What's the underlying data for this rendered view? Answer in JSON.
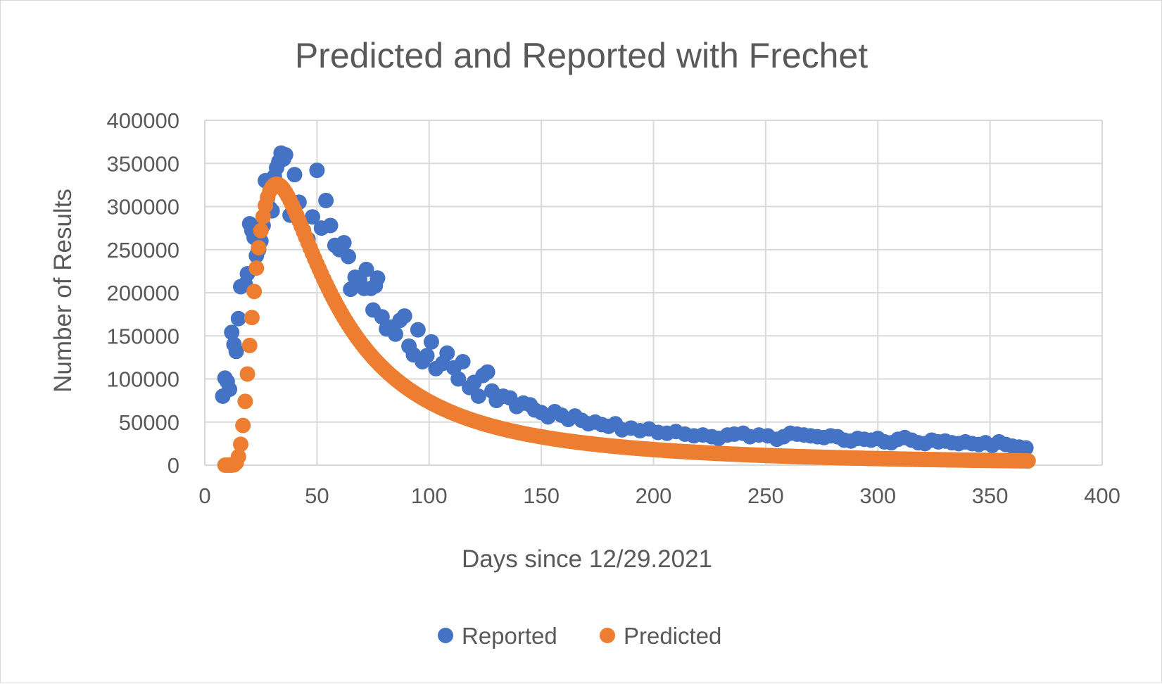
{
  "chart_data": {
    "type": "scatter",
    "title": "Predicted and Reported with Frechet",
    "xlabel": "Days since 12/29.2021",
    "ylabel": "Number of Results",
    "xlim": [
      0,
      400
    ],
    "ylim": [
      0,
      400000
    ],
    "x_ticks": [
      "0",
      "50",
      "100",
      "150",
      "200",
      "250",
      "300",
      "350",
      "400"
    ],
    "y_ticks": [
      "0",
      "50000",
      "100000",
      "150000",
      "200000",
      "250000",
      "300000",
      "350000",
      "400000"
    ],
    "grid": true,
    "legend_position": "bottom",
    "series": [
      {
        "name": "Reported",
        "color": "#4472c4",
        "points": [
          [
            8,
            80000
          ],
          [
            9,
            101000
          ],
          [
            10,
            97000
          ],
          [
            11,
            88000
          ],
          [
            12,
            154000
          ],
          [
            13,
            140000
          ],
          [
            14,
            132000
          ],
          [
            15,
            170000
          ],
          [
            16,
            207000
          ],
          [
            18,
            210000
          ],
          [
            19,
            222000
          ],
          [
            20,
            280000
          ],
          [
            21,
            272000
          ],
          [
            22,
            264000
          ],
          [
            23,
            243000
          ],
          [
            24,
            250000
          ],
          [
            25,
            260000
          ],
          [
            26,
            278000
          ],
          [
            27,
            330000
          ],
          [
            28,
            310000
          ],
          [
            29,
            298000
          ],
          [
            30,
            295000
          ],
          [
            31,
            335000
          ],
          [
            32,
            345000
          ],
          [
            33,
            352000
          ],
          [
            34,
            362000
          ],
          [
            35,
            355000
          ],
          [
            36,
            360000
          ],
          [
            38,
            290000
          ],
          [
            40,
            337000
          ],
          [
            42,
            305000
          ],
          [
            44,
            272000
          ],
          [
            46,
            262000
          ],
          [
            48,
            288000
          ],
          [
            50,
            342000
          ],
          [
            52,
            275000
          ],
          [
            54,
            307000
          ],
          [
            56,
            278000
          ],
          [
            58,
            255000
          ],
          [
            60,
            250000
          ],
          [
            62,
            258000
          ],
          [
            64,
            242000
          ],
          [
            65,
            204000
          ],
          [
            67,
            218000
          ],
          [
            69,
            215000
          ],
          [
            71,
            205000
          ],
          [
            72,
            227000
          ],
          [
            74,
            205000
          ],
          [
            75,
            180000
          ],
          [
            76,
            208000
          ],
          [
            77,
            217000
          ],
          [
            79,
            172000
          ],
          [
            81,
            158000
          ],
          [
            83,
            160000
          ],
          [
            85,
            152000
          ],
          [
            87,
            168000
          ],
          [
            89,
            173000
          ],
          [
            91,
            138000
          ],
          [
            93,
            128000
          ],
          [
            95,
            157000
          ],
          [
            97,
            120000
          ],
          [
            99,
            127000
          ],
          [
            101,
            143000
          ],
          [
            103,
            112000
          ],
          [
            106,
            118000
          ],
          [
            108,
            130000
          ],
          [
            111,
            113000
          ],
          [
            113,
            100000
          ],
          [
            115,
            120000
          ],
          [
            118,
            90000
          ],
          [
            120,
            96000
          ],
          [
            122,
            80000
          ],
          [
            124,
            104000
          ],
          [
            126,
            108000
          ],
          [
            128,
            86000
          ],
          [
            130,
            75000
          ],
          [
            133,
            80000
          ],
          [
            136,
            78000
          ],
          [
            139,
            68000
          ],
          [
            142,
            72000
          ],
          [
            145,
            70000
          ],
          [
            147,
            64000
          ],
          [
            150,
            61000
          ],
          [
            153,
            56000
          ],
          [
            156,
            62000
          ],
          [
            159,
            58000
          ],
          [
            162,
            53000
          ],
          [
            165,
            57000
          ],
          [
            168,
            52000
          ],
          [
            171,
            48000
          ],
          [
            174,
            50000
          ],
          [
            177,
            47000
          ],
          [
            180,
            45000
          ],
          [
            183,
            48000
          ],
          [
            186,
            41000
          ],
          [
            190,
            43000
          ],
          [
            194,
            40000
          ],
          [
            198,
            42000
          ],
          [
            202,
            38000
          ],
          [
            206,
            37000
          ],
          [
            210,
            39000
          ],
          [
            214,
            36000
          ],
          [
            218,
            34000
          ],
          [
            222,
            35000
          ],
          [
            226,
            33000
          ],
          [
            229,
            31000
          ],
          [
            233,
            35000
          ],
          [
            236,
            36000
          ],
          [
            240,
            37000
          ],
          [
            243,
            33000
          ],
          [
            247,
            35000
          ],
          [
            251,
            34000
          ],
          [
            255,
            30000
          ],
          [
            258,
            33000
          ],
          [
            261,
            37000
          ],
          [
            264,
            36000
          ],
          [
            267,
            35000
          ],
          [
            270,
            34000
          ],
          [
            273,
            33000
          ],
          [
            276,
            32000
          ],
          [
            279,
            34000
          ],
          [
            282,
            33000
          ],
          [
            285,
            29000
          ],
          [
            288,
            28000
          ],
          [
            291,
            31000
          ],
          [
            294,
            30000
          ],
          [
            297,
            29000
          ],
          [
            300,
            31000
          ],
          [
            303,
            27000
          ],
          [
            306,
            26000
          ],
          [
            309,
            30000
          ],
          [
            312,
            32000
          ],
          [
            315,
            29000
          ],
          [
            318,
            26000
          ],
          [
            321,
            25000
          ],
          [
            324,
            29000
          ],
          [
            327,
            27000
          ],
          [
            330,
            28000
          ],
          [
            333,
            26000
          ],
          [
            336,
            25000
          ],
          [
            339,
            27000
          ],
          [
            342,
            25000
          ],
          [
            345,
            24000
          ],
          [
            348,
            26000
          ],
          [
            351,
            23000
          ],
          [
            354,
            27000
          ],
          [
            357,
            24000
          ],
          [
            360,
            22000
          ],
          [
            363,
            21000
          ],
          [
            366,
            20000
          ]
        ]
      },
      {
        "name": "Predicted",
        "color": "#ed7d31",
        "model": "frechet",
        "x_start": 9,
        "x_end": 367,
        "peak_x": 32,
        "peak_y": 326000
      }
    ]
  }
}
